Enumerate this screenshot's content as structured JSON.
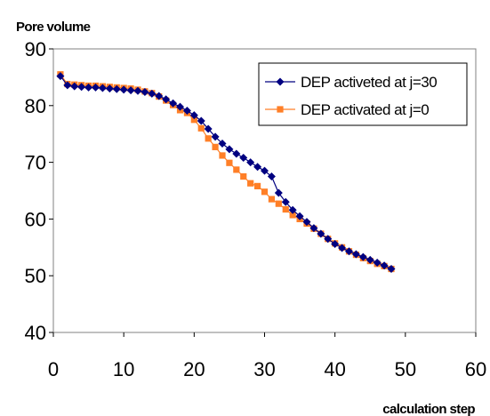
{
  "chart_data": {
    "type": "line",
    "title": "",
    "ylabel": "Pore volume",
    "xlabel": "calculation step",
    "xlim": [
      0,
      60
    ],
    "ylim": [
      40,
      90
    ],
    "xticks": [
      0,
      10,
      20,
      30,
      40,
      50,
      60
    ],
    "yticks": [
      40,
      50,
      60,
      70,
      80,
      90
    ],
    "grid": false,
    "legend_position": "top-right",
    "series": [
      {
        "name": "DEP activeted at j=30",
        "color": "#000080",
        "marker": "diamond",
        "x": [
          1,
          2,
          3,
          4,
          5,
          6,
          7,
          8,
          9,
          10,
          11,
          12,
          13,
          14,
          15,
          16,
          17,
          18,
          19,
          20,
          21,
          22,
          23,
          24,
          25,
          26,
          27,
          28,
          29,
          30,
          31,
          32,
          33,
          34,
          35,
          36,
          37,
          38,
          39,
          40,
          41,
          42,
          43,
          44,
          45,
          46,
          47,
          48
        ],
        "y": [
          85.2,
          83.6,
          83.4,
          83.3,
          83.2,
          83.2,
          83.1,
          83.0,
          82.9,
          82.8,
          82.7,
          82.6,
          82.4,
          82.1,
          81.7,
          81.1,
          80.4,
          79.8,
          79.1,
          78.3,
          77.3,
          75.9,
          74.5,
          73.3,
          72.3,
          71.5,
          70.8,
          70.0,
          69.2,
          68.5,
          67.5,
          64.6,
          63.0,
          61.6,
          60.5,
          59.5,
          58.4,
          57.4,
          56.5,
          55.6,
          54.9,
          54.3,
          53.8,
          53.3,
          52.8,
          52.3,
          51.8,
          51.2
        ]
      },
      {
        "name": "DEP activated at j=0",
        "color": "#FF7F27",
        "marker": "square",
        "x": [
          1,
          2,
          3,
          4,
          5,
          6,
          7,
          8,
          9,
          10,
          11,
          12,
          13,
          14,
          15,
          16,
          17,
          18,
          19,
          20,
          21,
          22,
          23,
          24,
          25,
          26,
          27,
          28,
          29,
          30,
          31,
          32,
          33,
          34,
          35,
          36,
          37,
          38,
          39,
          40,
          41,
          42,
          43,
          44,
          45,
          46,
          47,
          48
        ],
        "y": [
          85.5,
          83.8,
          83.7,
          83.6,
          83.5,
          83.5,
          83.4,
          83.3,
          83.2,
          83.1,
          83.0,
          82.8,
          82.5,
          82.2,
          81.6,
          80.9,
          80.1,
          79.2,
          78.7,
          77.5,
          76.0,
          74.2,
          72.7,
          71.2,
          69.9,
          68.7,
          67.5,
          66.3,
          65.8,
          64.8,
          63.5,
          62.7,
          61.7,
          60.7,
          60.0,
          59.2,
          58.3,
          57.4,
          56.5,
          55.7,
          55.0,
          54.3,
          53.7,
          53.1,
          52.6,
          52.1,
          51.7,
          51.2
        ]
      }
    ]
  }
}
